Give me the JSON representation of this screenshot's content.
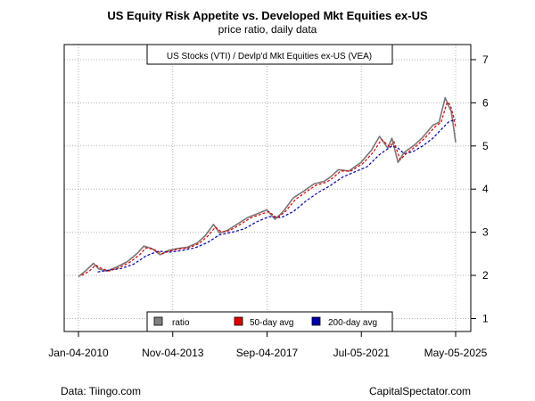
{
  "chart_data": {
    "type": "line",
    "title": "US Equity Risk Appetite vs. Developed Mkt Equities ex-US",
    "subtitle": "price ratio, daily data",
    "annotation": "US Stocks (VTI) / Devlp'd Mkt Equities ex-US (VEA)",
    "x_ticks": [
      "Jan-04-2010",
      "Nov-04-2013",
      "Sep-04-2017",
      "Jul-05-2021",
      "May-05-2025"
    ],
    "y_ticks": [
      1,
      2,
      3,
      4,
      5,
      6,
      7
    ],
    "ylim": [
      0.7,
      7.35
    ],
    "xlim": [
      "2010-01-04",
      "2025-05-05"
    ],
    "y_axis_side": "right",
    "grid": true,
    "legend": {
      "placement": "bottom-center",
      "entries": [
        "ratio",
        "50-day avg",
        "200-day avg"
      ]
    },
    "series": [
      {
        "name": "ratio",
        "color": "#777777",
        "style": "solid",
        "points": [
          [
            "2010-01-04",
            1.97
          ],
          [
            "2010-05-01",
            2.12
          ],
          [
            "2010-08-15",
            2.28
          ],
          [
            "2010-11-01",
            2.15
          ],
          [
            "2011-03-01",
            2.1
          ],
          [
            "2011-08-01",
            2.2
          ],
          [
            "2012-01-01",
            2.32
          ],
          [
            "2012-06-01",
            2.52
          ],
          [
            "2012-09-01",
            2.68
          ],
          [
            "2013-01-01",
            2.62
          ],
          [
            "2013-05-01",
            2.48
          ],
          [
            "2013-09-01",
            2.58
          ],
          [
            "2014-01-01",
            2.62
          ],
          [
            "2014-06-01",
            2.65
          ],
          [
            "2014-11-01",
            2.75
          ],
          [
            "2015-03-01",
            2.92
          ],
          [
            "2015-07-01",
            3.18
          ],
          [
            "2015-10-01",
            2.98
          ],
          [
            "2016-02-01",
            3.05
          ],
          [
            "2016-07-01",
            3.2
          ],
          [
            "2016-12-01",
            3.35
          ],
          [
            "2017-04-01",
            3.42
          ],
          [
            "2017-09-01",
            3.52
          ],
          [
            "2018-01-01",
            3.3
          ],
          [
            "2018-05-01",
            3.48
          ],
          [
            "2018-10-01",
            3.8
          ],
          [
            "2019-03-01",
            3.95
          ],
          [
            "2019-08-01",
            4.12
          ],
          [
            "2020-01-01",
            4.18
          ],
          [
            "2020-04-01",
            4.28
          ],
          [
            "2020-08-01",
            4.45
          ],
          [
            "2021-01-01",
            4.42
          ],
          [
            "2021-07-01",
            4.62
          ],
          [
            "2021-12-01",
            4.9
          ],
          [
            "2022-04-01",
            5.22
          ],
          [
            "2022-08-01",
            4.95
          ],
          [
            "2022-10-01",
            5.18
          ],
          [
            "2023-01-01",
            4.62
          ],
          [
            "2023-04-01",
            4.85
          ],
          [
            "2023-09-01",
            5.02
          ],
          [
            "2024-01-01",
            5.2
          ],
          [
            "2024-06-01",
            5.48
          ],
          [
            "2024-09-01",
            5.55
          ],
          [
            "2024-12-01",
            6.12
          ],
          [
            "2025-01-15",
            5.95
          ],
          [
            "2025-03-01",
            5.8
          ],
          [
            "2025-04-10",
            5.38
          ],
          [
            "2025-05-05",
            5.08
          ]
        ]
      },
      {
        "name": "50-day avg",
        "color": "#dd0000",
        "style": "dashed",
        "points": [
          [
            "2010-02-20",
            2.0
          ],
          [
            "2010-06-15",
            2.1
          ],
          [
            "2010-09-15",
            2.24
          ],
          [
            "2010-12-01",
            2.17
          ],
          [
            "2011-04-01",
            2.1
          ],
          [
            "2011-09-01",
            2.18
          ],
          [
            "2012-02-01",
            2.3
          ],
          [
            "2012-07-01",
            2.48
          ],
          [
            "2012-10-01",
            2.64
          ],
          [
            "2013-02-01",
            2.6
          ],
          [
            "2013-06-01",
            2.5
          ],
          [
            "2013-10-01",
            2.57
          ],
          [
            "2014-02-01",
            2.61
          ],
          [
            "2014-07-01",
            2.64
          ],
          [
            "2014-12-01",
            2.74
          ],
          [
            "2015-04-01",
            2.9
          ],
          [
            "2015-08-01",
            3.12
          ],
          [
            "2015-11-01",
            3.0
          ],
          [
            "2016-03-01",
            3.04
          ],
          [
            "2016-08-01",
            3.18
          ],
          [
            "2017-01-01",
            3.33
          ],
          [
            "2017-05-01",
            3.4
          ],
          [
            "2017-10-01",
            3.48
          ],
          [
            "2018-02-01",
            3.33
          ],
          [
            "2018-06-01",
            3.48
          ],
          [
            "2018-11-01",
            3.76
          ],
          [
            "2019-04-01",
            3.93
          ],
          [
            "2019-09-01",
            4.09
          ],
          [
            "2020-02-01",
            4.16
          ],
          [
            "2020-05-01",
            4.25
          ],
          [
            "2020-09-01",
            4.42
          ],
          [
            "2021-02-01",
            4.42
          ],
          [
            "2021-08-01",
            4.6
          ],
          [
            "2022-01-01",
            4.86
          ],
          [
            "2022-05-01",
            5.15
          ],
          [
            "2022-09-01",
            4.98
          ],
          [
            "2022-11-01",
            5.1
          ],
          [
            "2023-02-01",
            4.68
          ],
          [
            "2023-05-01",
            4.82
          ],
          [
            "2023-10-01",
            5.0
          ],
          [
            "2024-02-01",
            5.18
          ],
          [
            "2024-07-01",
            5.44
          ],
          [
            "2024-10-01",
            5.55
          ],
          [
            "2025-01-01",
            6.02
          ],
          [
            "2025-02-15",
            5.95
          ],
          [
            "2025-04-01",
            5.7
          ],
          [
            "2025-05-05",
            5.45
          ]
        ]
      },
      {
        "name": "200-day avg",
        "color": "#0000aa",
        "style": "dashed",
        "points": [
          [
            "2010-10-15",
            2.08
          ],
          [
            "2011-04-01",
            2.12
          ],
          [
            "2011-10-01",
            2.16
          ],
          [
            "2012-04-01",
            2.26
          ],
          [
            "2012-10-01",
            2.45
          ],
          [
            "2013-04-01",
            2.56
          ],
          [
            "2013-10-01",
            2.54
          ],
          [
            "2014-04-01",
            2.58
          ],
          [
            "2014-10-01",
            2.64
          ],
          [
            "2015-04-01",
            2.76
          ],
          [
            "2015-10-01",
            2.94
          ],
          [
            "2016-04-01",
            3.0
          ],
          [
            "2016-10-01",
            3.08
          ],
          [
            "2017-04-01",
            3.24
          ],
          [
            "2017-10-01",
            3.36
          ],
          [
            "2018-04-01",
            3.34
          ],
          [
            "2018-10-01",
            3.48
          ],
          [
            "2019-04-01",
            3.72
          ],
          [
            "2019-10-01",
            3.92
          ],
          [
            "2020-04-01",
            4.08
          ],
          [
            "2020-10-01",
            4.28
          ],
          [
            "2021-04-01",
            4.4
          ],
          [
            "2021-10-01",
            4.52
          ],
          [
            "2022-04-01",
            4.8
          ],
          [
            "2022-10-01",
            5.0
          ],
          [
            "2023-01-01",
            4.95
          ],
          [
            "2023-04-01",
            4.82
          ],
          [
            "2023-08-01",
            4.86
          ],
          [
            "2024-01-01",
            5.0
          ],
          [
            "2024-06-01",
            5.18
          ],
          [
            "2024-10-01",
            5.38
          ],
          [
            "2025-01-15",
            5.55
          ],
          [
            "2025-05-05",
            5.62
          ]
        ]
      }
    ]
  },
  "footer": {
    "left": "Data: Tiingo.com",
    "right": "CapitalSpectator.com"
  }
}
